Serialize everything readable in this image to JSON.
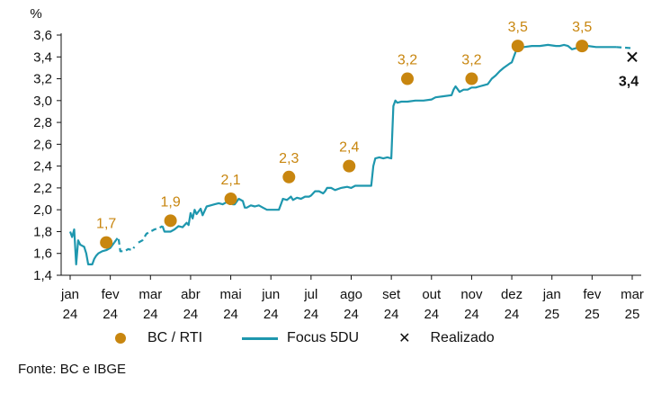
{
  "chart_data": {
    "type": "line",
    "ylabel": "%",
    "ylim": [
      1.4,
      3.6
    ],
    "yticks": [
      "1,4",
      "1,6",
      "1,8",
      "2,0",
      "2,2",
      "2,4",
      "2,6",
      "2,8",
      "3,0",
      "3,2",
      "3,4",
      "3,6"
    ],
    "xticks": [
      {
        "month": "jan",
        "year": "24"
      },
      {
        "month": "fev",
        "year": "24"
      },
      {
        "month": "mar",
        "year": "24"
      },
      {
        "month": "abr",
        "year": "24"
      },
      {
        "month": "mai",
        "year": "24"
      },
      {
        "month": "jun",
        "year": "24"
      },
      {
        "month": "jul",
        "year": "24"
      },
      {
        "month": "ago",
        "year": "24"
      },
      {
        "month": "set",
        "year": "24"
      },
      {
        "month": "out",
        "year": "24"
      },
      {
        "month": "nov",
        "year": "24"
      },
      {
        "month": "dez",
        "year": "24"
      },
      {
        "month": "jan",
        "year": "25"
      },
      {
        "month": "fev",
        "year": "25"
      },
      {
        "month": "mar",
        "year": "25"
      }
    ],
    "series": [
      {
        "name": "BC / RTI",
        "kind": "points",
        "color": "#c8860f",
        "points": [
          {
            "x": 0.9,
            "y": 1.7,
            "label": "1,7"
          },
          {
            "x": 2.5,
            "y": 1.9,
            "label": "1,9"
          },
          {
            "x": 4.0,
            "y": 2.1,
            "label": "2,1"
          },
          {
            "x": 5.45,
            "y": 2.3,
            "label": "2,3"
          },
          {
            "x": 6.95,
            "y": 2.4,
            "label": "2,4"
          },
          {
            "x": 8.4,
            "y": 3.2,
            "label": "3,2"
          },
          {
            "x": 10.0,
            "y": 3.2,
            "label": "3,2"
          },
          {
            "x": 11.15,
            "y": 3.5,
            "label": "3,5"
          },
          {
            "x": 12.75,
            "y": 3.5,
            "label": "3,5"
          }
        ]
      },
      {
        "name": "Focus 5DU",
        "kind": "line",
        "color": "#1e97ae",
        "segments": [
          {
            "style": "solid",
            "points": [
              [
                0.0,
                1.8
              ],
              [
                0.05,
                1.75
              ],
              [
                0.1,
                1.82
              ],
              [
                0.15,
                1.5
              ],
              [
                0.2,
                1.72
              ],
              [
                0.25,
                1.68
              ],
              [
                0.3,
                1.67
              ],
              [
                0.35,
                1.66
              ],
              [
                0.4,
                1.6
              ],
              [
                0.45,
                1.5
              ],
              [
                0.55,
                1.5
              ],
              [
                0.6,
                1.55
              ],
              [
                0.65,
                1.58
              ],
              [
                0.7,
                1.6
              ],
              [
                0.8,
                1.62
              ],
              [
                0.9,
                1.63
              ],
              [
                1.0,
                1.65
              ],
              [
                1.1,
                1.7
              ]
            ]
          },
          {
            "style": "dashed",
            "points": [
              [
                1.1,
                1.7
              ],
              [
                1.2,
                1.75
              ],
              [
                1.25,
                1.62
              ],
              [
                1.35,
                1.62
              ],
              [
                1.45,
                1.64
              ],
              [
                1.55,
                1.63
              ],
              [
                1.6,
                1.66
              ]
            ]
          },
          {
            "style": "dashed",
            "points": [
              [
                1.7,
                1.7
              ],
              [
                1.8,
                1.72
              ],
              [
                1.9,
                1.78
              ],
              [
                2.0,
                1.8
              ],
              [
                2.1,
                1.82
              ],
              [
                2.2,
                1.83
              ],
              [
                2.3,
                1.85
              ]
            ]
          },
          {
            "style": "solid",
            "points": [
              [
                2.3,
                1.85
              ],
              [
                2.35,
                1.8
              ],
              [
                2.5,
                1.8
              ],
              [
                2.6,
                1.82
              ],
              [
                2.7,
                1.85
              ],
              [
                2.8,
                1.84
              ],
              [
                2.9,
                1.88
              ],
              [
                2.95,
                1.86
              ],
              [
                3.0,
                1.97
              ],
              [
                3.05,
                1.92
              ],
              [
                3.1,
                2.0
              ],
              [
                3.15,
                1.96
              ],
              [
                3.25,
                2.01
              ],
              [
                3.3,
                1.95
              ],
              [
                3.4,
                2.03
              ],
              [
                3.5,
                2.04
              ],
              [
                3.6,
                2.05
              ],
              [
                3.7,
                2.06
              ],
              [
                3.8,
                2.05
              ],
              [
                3.9,
                2.07
              ],
              [
                4.0,
                2.1
              ],
              [
                4.05,
                2.05
              ],
              [
                4.1,
                2.05
              ],
              [
                4.2,
                2.1
              ],
              [
                4.3,
                2.08
              ],
              [
                4.35,
                2.02
              ],
              [
                4.4,
                2.02
              ],
              [
                4.5,
                2.04
              ],
              [
                4.6,
                2.03
              ],
              [
                4.7,
                2.04
              ],
              [
                4.8,
                2.02
              ],
              [
                4.9,
                2.0
              ],
              [
                5.0,
                2.0
              ],
              [
                5.2,
                2.0
              ],
              [
                5.25,
                2.05
              ],
              [
                5.3,
                2.1
              ],
              [
                5.4,
                2.09
              ],
              [
                5.5,
                2.12
              ],
              [
                5.55,
                2.09
              ],
              [
                5.65,
                2.11
              ],
              [
                5.75,
                2.1
              ],
              [
                5.85,
                2.12
              ],
              [
                5.95,
                2.12
              ],
              [
                6.0,
                2.13
              ],
              [
                6.05,
                2.15
              ],
              [
                6.1,
                2.17
              ],
              [
                6.2,
                2.17
              ],
              [
                6.3,
                2.15
              ],
              [
                6.35,
                2.17
              ],
              [
                6.4,
                2.2
              ],
              [
                6.5,
                2.2
              ],
              [
                6.6,
                2.18
              ],
              [
                6.75,
                2.2
              ],
              [
                6.9,
                2.21
              ],
              [
                7.0,
                2.2
              ],
              [
                7.1,
                2.22
              ],
              [
                7.2,
                2.22
              ],
              [
                7.3,
                2.22
              ],
              [
                7.5,
                2.22
              ],
              [
                7.55,
                2.4
              ],
              [
                7.6,
                2.47
              ],
              [
                7.7,
                2.48
              ],
              [
                7.8,
                2.47
              ],
              [
                7.9,
                2.48
              ],
              [
                8.0,
                2.47
              ],
              [
                8.05,
                2.95
              ],
              [
                8.1,
                3.0
              ],
              [
                8.15,
                2.98
              ],
              [
                8.25,
                2.99
              ],
              [
                8.4,
                2.99
              ],
              [
                8.6,
                3.0
              ],
              [
                8.8,
                3.0
              ],
              [
                9.0,
                3.01
              ],
              [
                9.1,
                3.03
              ],
              [
                9.3,
                3.04
              ],
              [
                9.5,
                3.05
              ],
              [
                9.55,
                3.1
              ],
              [
                9.6,
                3.13
              ],
              [
                9.7,
                3.08
              ],
              [
                9.8,
                3.1
              ],
              [
                9.9,
                3.1
              ],
              [
                10.0,
                3.12
              ],
              [
                10.1,
                3.12
              ],
              [
                10.2,
                3.13
              ],
              [
                10.3,
                3.14
              ],
              [
                10.4,
                3.15
              ],
              [
                10.5,
                3.2
              ],
              [
                10.6,
                3.23
              ],
              [
                10.7,
                3.27
              ],
              [
                10.8,
                3.3
              ],
              [
                10.95,
                3.34
              ],
              [
                11.0,
                3.35
              ],
              [
                11.1,
                3.45
              ],
              [
                11.15,
                3.47
              ],
              [
                11.3,
                3.49
              ],
              [
                11.5,
                3.5
              ],
              [
                11.7,
                3.5
              ],
              [
                11.9,
                3.51
              ],
              [
                12.1,
                3.5
              ],
              [
                12.2,
                3.5
              ],
              [
                12.3,
                3.51
              ],
              [
                12.4,
                3.5
              ],
              [
                12.5,
                3.47
              ],
              [
                12.6,
                3.48
              ],
              [
                12.7,
                3.5
              ],
              [
                12.9,
                3.5
              ],
              [
                13.1,
                3.49
              ],
              [
                13.5,
                3.49
              ],
              [
                13.6,
                3.49
              ]
            ]
          },
          {
            "style": "dashed",
            "points": [
              [
                13.6,
                3.49
              ],
              [
                14.0,
                3.48
              ]
            ]
          }
        ]
      },
      {
        "name": "Realizado",
        "kind": "marker",
        "color": "#111111",
        "points": [
          {
            "x": 14.0,
            "y": 3.4,
            "label": "3,4"
          }
        ]
      }
    ],
    "legend": {
      "placement": "bottom",
      "items": [
        "BC / RTI",
        "Focus 5DU",
        "Realizado"
      ]
    },
    "grid": false
  },
  "source": "Fonte: BC e IBGE"
}
